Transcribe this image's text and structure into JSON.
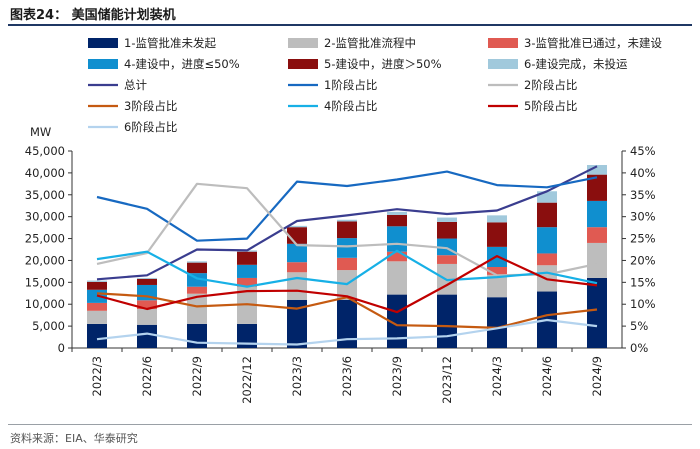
{
  "figure": {
    "title": "图表24：  美国储能计划装机",
    "source": "资料来源：EIA、华泰研究"
  },
  "chart_data": {
    "type": "bar",
    "stacked": true,
    "title": "美国储能计划装机",
    "ylabel": "MW",
    "ylim": [
      0,
      45000
    ],
    "yticks": [
      0,
      5000,
      10000,
      15000,
      20000,
      25000,
      30000,
      35000,
      40000,
      45000
    ],
    "ytick_labels": [
      "0",
      "5,000",
      "10,000",
      "15,000",
      "20,000",
      "25,000",
      "30,000",
      "35,000",
      "40,000",
      "45,000"
    ],
    "y2lim": [
      0,
      45
    ],
    "y2ticks": [
      0,
      5,
      10,
      15,
      20,
      25,
      30,
      35,
      40,
      45
    ],
    "y2tick_labels": [
      "0%",
      "5%",
      "10%",
      "15%",
      "20%",
      "25%",
      "30%",
      "35%",
      "40%",
      "45%"
    ],
    "categories": [
      "2022/3",
      "2022/6",
      "2022/9",
      "2022/12",
      "2023/3",
      "2023/6",
      "2023/9",
      "2023/12",
      "2024/3",
      "2024/6",
      "2024/9"
    ],
    "bar_series": [
      {
        "name": "1-监管批准未发起",
        "color": "#002469",
        "values": [
          5500,
          5300,
          5500,
          5500,
          11000,
          11000,
          12200,
          12200,
          11600,
          12900,
          16000
        ]
      },
      {
        "name": "2-监管批准流程中",
        "color": "#bdbdbd",
        "values": [
          3000,
          3600,
          6900,
          8500,
          6300,
          6800,
          7600,
          7000,
          5100,
          6000,
          8000
        ]
      },
      {
        "name": "3-监管批准已通过，未建设",
        "color": "#e05a52",
        "values": [
          1800,
          2000,
          1600,
          2000,
          2300,
          2800,
          2200,
          2000,
          1800,
          2700,
          3600
        ]
      },
      {
        "name": "4-建设中，进度≤50%",
        "color": "#108fcf",
        "values": [
          3000,
          3500,
          3100,
          3000,
          4200,
          4500,
          5800,
          3800,
          4600,
          6000,
          6000
        ]
      },
      {
        "name": "5-建设中，进度＞50%",
        "color": "#8a0e0e",
        "values": [
          1800,
          1400,
          2400,
          3000,
          3800,
          3800,
          2600,
          3800,
          5600,
          5600,
          6000
        ]
      },
      {
        "name": "6-建设完成，未投运",
        "color": "#a1c9dc",
        "values": [
          300,
          200,
          300,
          300,
          300,
          400,
          700,
          1000,
          1600,
          2600,
          2200
        ]
      }
    ],
    "line_series": [
      {
        "name": "总计",
        "color": "#3a3d8f",
        "values": [
          15700,
          16600,
          22500,
          22300,
          29000,
          30300,
          31700,
          30600,
          31400,
          35800,
          41500
        ]
      },
      {
        "name": "1阶段占比",
        "color": "#1769c1",
        "values": [
          34.5,
          31.8,
          24.5,
          25.0,
          38.0,
          37.0,
          38.5,
          40.3,
          37.2,
          36.7,
          39.0
        ]
      },
      {
        "name": "2阶段占比",
        "color": "#bdbdbd",
        "values": [
          19.2,
          21.7,
          37.5,
          36.5,
          23.5,
          23.2,
          23.8,
          22.8,
          16.6,
          16.8,
          19.2
        ]
      },
      {
        "name": "3阶段占比",
        "color": "#c55a11",
        "values": [
          12.5,
          11.8,
          9.5,
          10.0,
          9.0,
          11.6,
          5.2,
          5.0,
          4.6,
          7.5,
          8.8
        ]
      },
      {
        "name": "4阶段占比",
        "color": "#17b0e6",
        "values": [
          20.3,
          22.0,
          15.9,
          14.0,
          16.0,
          14.6,
          22.2,
          15.5,
          16.2,
          17.2,
          14.8
        ]
      },
      {
        "name": "5阶段占比",
        "color": "#c00000",
        "values": [
          12.0,
          8.9,
          11.7,
          13.0,
          13.1,
          11.8,
          8.2,
          14.4,
          21.0,
          15.7,
          14.3
        ]
      },
      {
        "name": "6阶段占比",
        "color": "#b4d3ee",
        "values": [
          2.0,
          3.3,
          1.2,
          1.0,
          0.8,
          2.0,
          2.2,
          2.7,
          4.5,
          6.4,
          5.0
        ]
      }
    ],
    "line_axes": [
      "left",
      "right",
      "right",
      "right",
      "right",
      "right",
      "right"
    ],
    "legend_position": "top"
  }
}
